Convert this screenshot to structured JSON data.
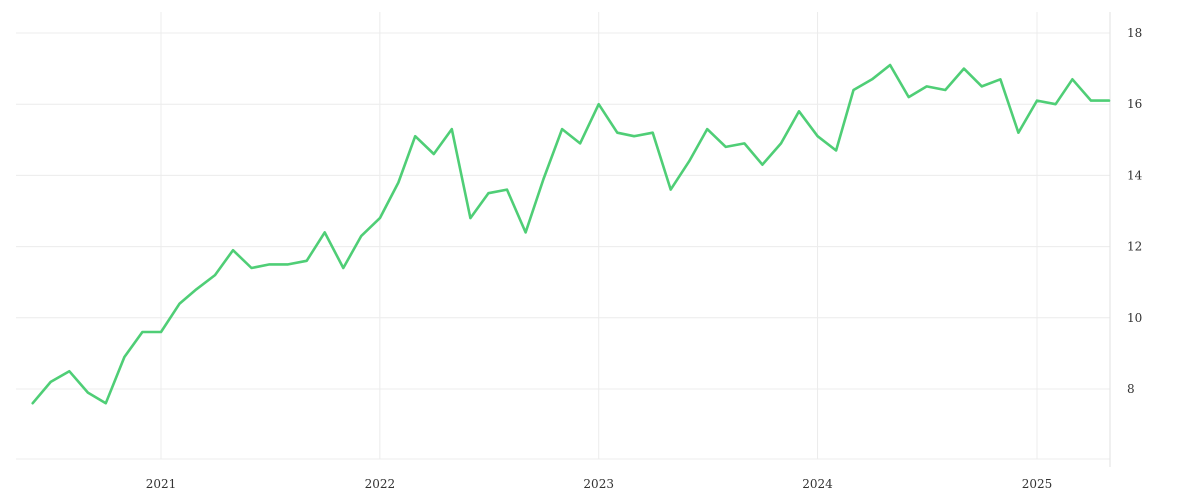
{
  "chart_data": {
    "type": "line",
    "title": "",
    "xlabel": "",
    "ylabel": "",
    "x_ticks": [
      "2021",
      "2022",
      "2023",
      "2024",
      "2025"
    ],
    "y_ticks": [
      8,
      10,
      12,
      14,
      16,
      18
    ],
    "ylim": [
      6,
      18.6
    ],
    "grid": true,
    "y_axis_side": "right",
    "colors": {
      "line": "#4fce76",
      "grid": "#ececec",
      "text": "#333333"
    },
    "series": [
      {
        "x": [
          "2020-06",
          "2020-07",
          "2020-08",
          "2020-09",
          "2020-10",
          "2020-11",
          "2020-12",
          "2021-01",
          "2021-02",
          "2021-03",
          "2021-04",
          "2021-05",
          "2021-06",
          "2021-07",
          "2021-08",
          "2021-09",
          "2021-10",
          "2021-11",
          "2021-12",
          "2022-01",
          "2022-02",
          "2022-03",
          "2022-04",
          "2022-05",
          "2022-06",
          "2022-07",
          "2022-08",
          "2022-09",
          "2022-10",
          "2022-11",
          "2022-12",
          "2023-01",
          "2023-02",
          "2023-03",
          "2023-04",
          "2023-05",
          "2023-06",
          "2023-07",
          "2023-08",
          "2023-09",
          "2023-10",
          "2023-11",
          "2023-12",
          "2024-01",
          "2024-02",
          "2024-03",
          "2024-04",
          "2024-05",
          "2024-06",
          "2024-07",
          "2024-08",
          "2024-09",
          "2024-10",
          "2024-11",
          "2024-12",
          "2025-01",
          "2025-02",
          "2025-03",
          "2025-04",
          "2025-05"
        ],
        "values": [
          7.6,
          8.2,
          8.5,
          7.9,
          7.6,
          8.9,
          9.6,
          9.6,
          10.4,
          10.8,
          11.2,
          11.9,
          11.4,
          11.5,
          11.5,
          11.6,
          12.4,
          11.4,
          12.3,
          12.8,
          13.8,
          15.1,
          14.6,
          15.3,
          12.8,
          13.5,
          13.6,
          12.4,
          13.9,
          15.3,
          14.9,
          16.0,
          15.2,
          15.1,
          15.2,
          13.6,
          14.4,
          15.3,
          14.8,
          14.9,
          14.3,
          14.9,
          15.8,
          15.1,
          14.7,
          16.4,
          16.7,
          17.1,
          16.2,
          16.5,
          16.4,
          17.0,
          16.5,
          16.7,
          15.2,
          16.1,
          16.0,
          16.7,
          16.1,
          16.1
        ]
      }
    ]
  }
}
